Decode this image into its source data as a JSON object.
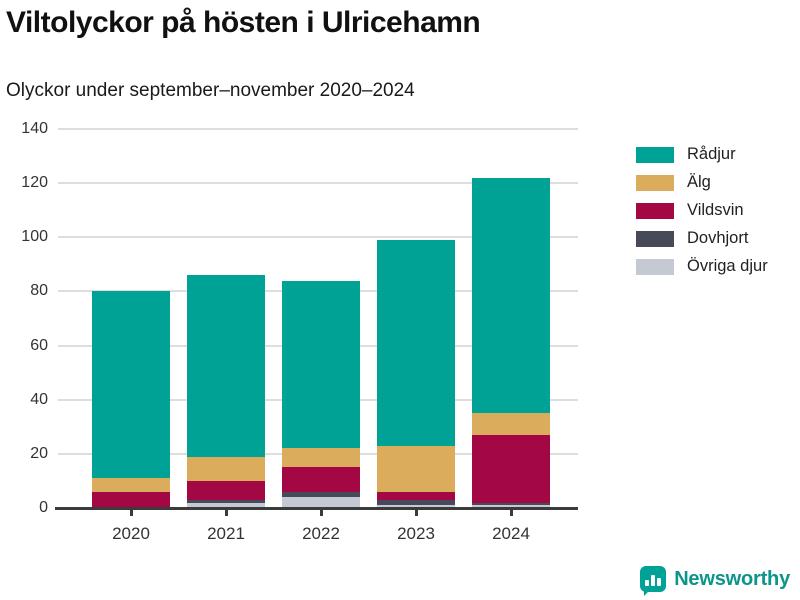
{
  "title": "Viltolyckor på hösten i Ulricehamn",
  "subtitle": "Olyckor under september–november 2020–2024",
  "chart_data": {
    "type": "bar",
    "stacked": true,
    "title": "Viltolyckor på hösten i Ulricehamn",
    "subtitle": "Olyckor under september–november 2020–2024",
    "categories": [
      "2020",
      "2021",
      "2022",
      "2023",
      "2024"
    ],
    "series": [
      {
        "name": "Rådjur",
        "color": "#00a296",
        "values": [
          69,
          67,
          62,
          76,
          87
        ]
      },
      {
        "name": "Älg",
        "color": "#dbac5c",
        "values": [
          5,
          9,
          7,
          17,
          8
        ]
      },
      {
        "name": "Vildsvin",
        "color": "#a30845",
        "values": [
          6,
          7,
          9,
          3,
          25
        ]
      },
      {
        "name": "Dovhjort",
        "color": "#474a58",
        "values": [
          0,
          1,
          2,
          2,
          1
        ]
      },
      {
        "name": "Övriga djur",
        "color": "#c5c9d3",
        "values": [
          0,
          2,
          4,
          1,
          1
        ]
      }
    ],
    "totals": [
      80,
      86,
      84,
      99,
      122
    ],
    "ylim": [
      0,
      140
    ],
    "yticks": [
      0,
      20,
      40,
      60,
      80,
      100,
      120,
      140
    ],
    "xlabel": "",
    "ylabel": "",
    "grid": true,
    "legend_position": "right"
  },
  "colors": {
    "accent_teal": "#00a296",
    "axis": "#3b3b3b",
    "gridline": "#dedede",
    "text": "#333333"
  },
  "branding": {
    "logo_text": "Newsworthy"
  }
}
